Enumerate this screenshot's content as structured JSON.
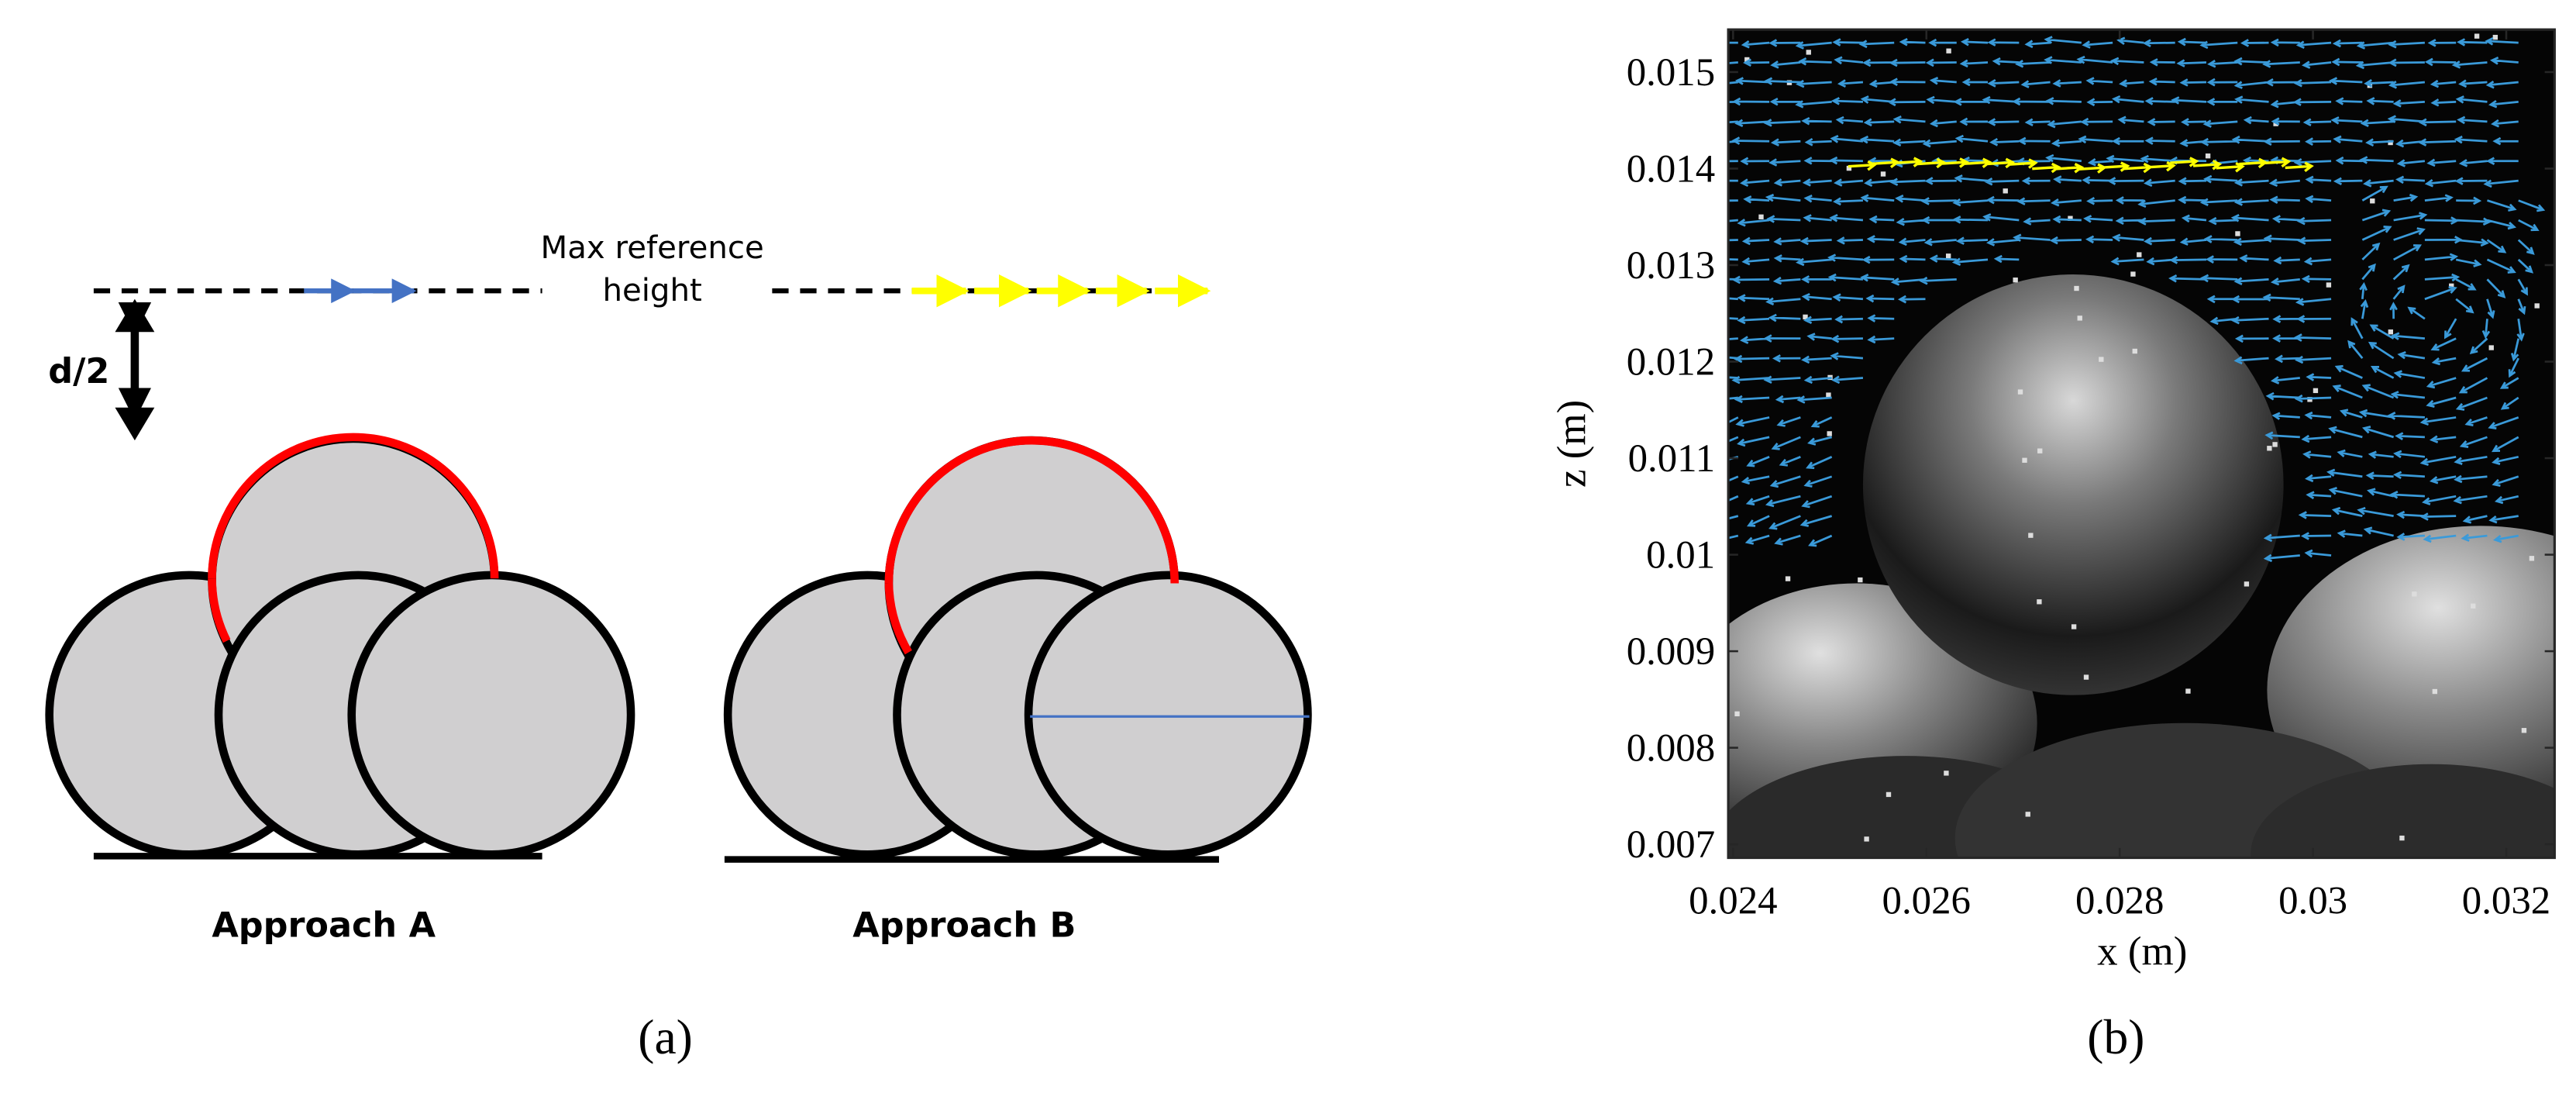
{
  "panel_a": {
    "max_label": [
      "Max reference",
      "height"
    ],
    "d_label": "d/2",
    "approach_a": "Approach A",
    "approach_b": "Approach B",
    "caption": "(a)"
  },
  "panel_b": {
    "xlabel": "x (m)",
    "ylabel": "z (m)",
    "xlim": [
      0.02395,
      0.0325
    ],
    "ylim": [
      0.00686,
      0.01544
    ],
    "xticks": [
      0.024,
      0.026,
      0.028,
      0.03,
      0.032
    ],
    "yticks": [
      0.007,
      0.008,
      0.009,
      0.01,
      0.011,
      0.012,
      0.013,
      0.014,
      0.015
    ],
    "caption": "(b)"
  }
}
